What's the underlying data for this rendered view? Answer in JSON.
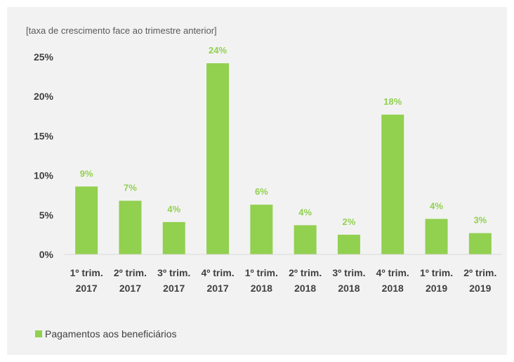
{
  "chart_data": {
    "type": "bar",
    "unit_label": "[taxa de crescimento face ao trimestre anterior]",
    "categories": [
      [
        "1º trim.",
        "2017"
      ],
      [
        "2º trim.",
        "2017"
      ],
      [
        "3º trim.",
        "2017"
      ],
      [
        "4º trim.",
        "2017"
      ],
      [
        "1º trim.",
        "2018"
      ],
      [
        "2º trim.",
        "2018"
      ],
      [
        "3º trim.",
        "2018"
      ],
      [
        "4º trim.",
        "2018"
      ],
      [
        "1º trim.",
        "2019"
      ],
      [
        "2º trim.",
        "2019"
      ]
    ],
    "series": [
      {
        "name": "Pagamentos aos beneficiários",
        "values": [
          8.6,
          6.8,
          4.1,
          24.2,
          6.3,
          3.7,
          2.5,
          17.7,
          4.5,
          2.7
        ],
        "data_labels": [
          "9%",
          "7%",
          "4%",
          "24%",
          "6%",
          "4%",
          "2%",
          "18%",
          "4%",
          "3%"
        ],
        "color": "#92d050"
      }
    ],
    "y_ticks": [
      0,
      5,
      10,
      15,
      20,
      25
    ],
    "y_tick_labels": [
      "0%",
      "5%",
      "10%",
      "15%",
      "20%",
      "25%"
    ],
    "ylim": [
      0,
      25
    ],
    "grid": false,
    "legend_position": "bottom-left",
    "colors": {
      "background": "#f2f2f2",
      "axis": "#d9d9d9",
      "tick_text": "#404040",
      "label_text": "#92d050"
    }
  }
}
